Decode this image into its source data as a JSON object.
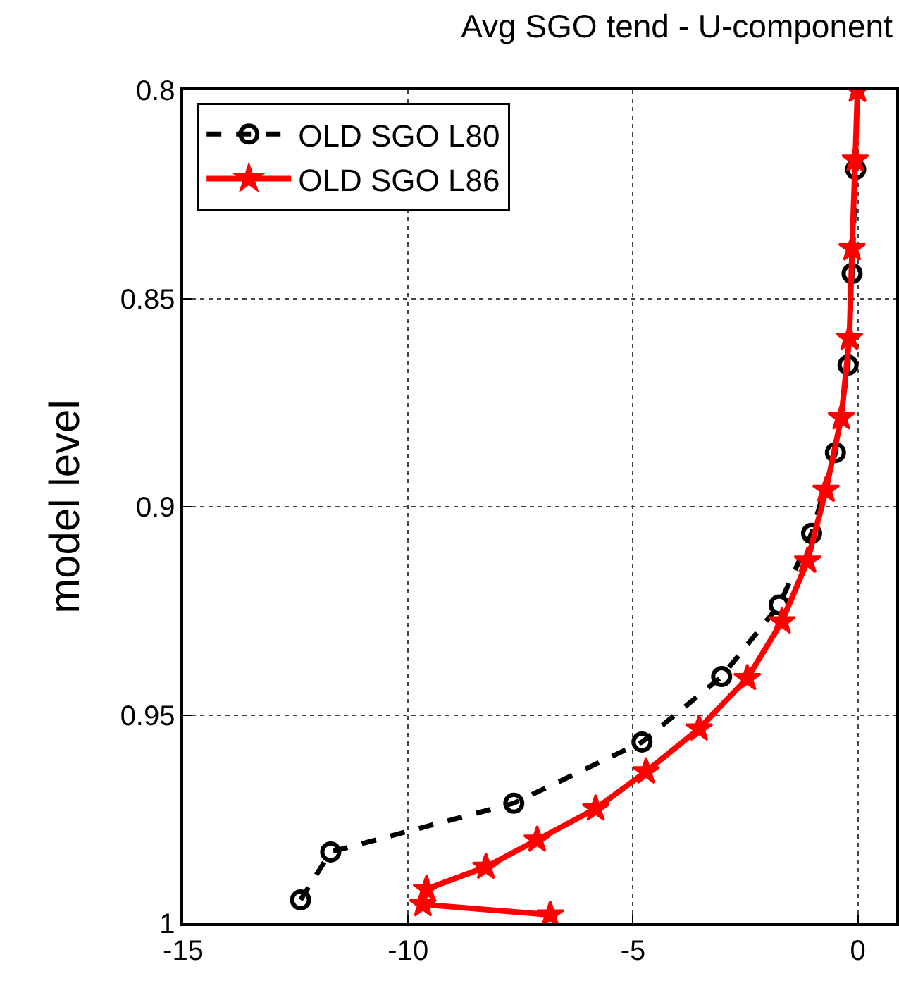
{
  "chart_data": {
    "type": "line",
    "title": "Avg SGO tend - U-component",
    "ylabel": "model level",
    "xlim": [
      -15,
      0.85
    ],
    "xticks": [
      -15,
      -10,
      -5,
      0
    ],
    "ylim": [
      1,
      0.8
    ],
    "yticks": [
      0.8,
      0.85,
      0.9,
      0.95,
      1
    ],
    "grid": true,
    "legend": "top left",
    "series": [
      {
        "name": "OLD SGO L80",
        "color": "#000000",
        "marker": "circle",
        "line_style": "dashed",
        "x": [
          -12.39,
          -11.72,
          -7.65,
          -4.8,
          -3.03,
          -1.75,
          -1.03,
          -0.5,
          -0.22,
          -0.13,
          -0.05
        ],
        "values": [
          0.9944,
          0.9829,
          0.9712,
          0.9565,
          0.9408,
          0.9236,
          0.9064,
          0.887,
          0.866,
          0.844,
          0.819
        ]
      },
      {
        "name": "OLD SGO L86",
        "color": "#ff0000",
        "marker": "star",
        "line_style": "solid",
        "x": [
          -6.84,
          -9.67,
          -9.59,
          -8.27,
          -7.13,
          -5.83,
          -4.71,
          -3.53,
          -2.46,
          -1.69,
          -1.12,
          -0.71,
          -0.37,
          -0.19,
          -0.13,
          -0.06,
          -0.01
        ],
        "values": [
          0.998,
          0.9955,
          0.9918,
          0.9865,
          0.98,
          0.9725,
          0.9636,
          0.9533,
          0.9412,
          0.9276,
          0.913,
          0.896,
          0.8786,
          0.8595,
          0.838,
          0.8167,
          0.8
        ]
      }
    ]
  }
}
